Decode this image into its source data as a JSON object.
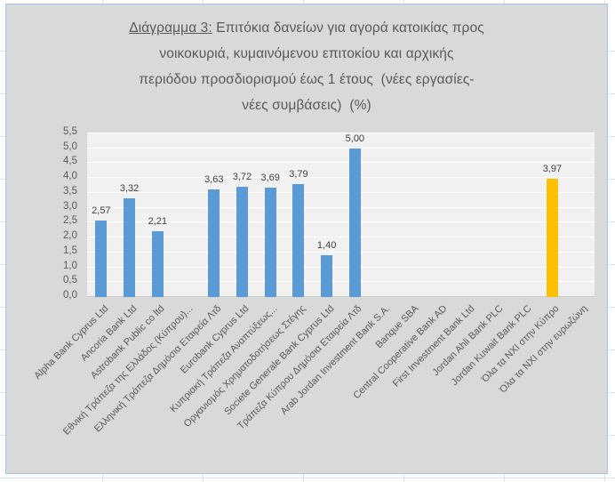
{
  "frame_colors": {
    "chart_background": "#d9d9d9",
    "plot_background": "#f1f1f1",
    "chart_border": "#a6c5e4",
    "gridline": "#ffffff",
    "text": "#595959",
    "value_label_text": "#3f3f3f"
  },
  "chart_data": {
    "type": "bar",
    "title": "Διάγραμμα 3: Επιτόκια δανείων για αγορά κατοικίας προς νοικοκυριά, κυμαινόμενου επιτοκίου και αρχικής περιόδου προσδιορισμού έως 1 έτους (νέες εργασίες-νέες συμβάσεις) (%)",
    "title_lines": [
      {
        "u": "Διάγραμμα 3:",
        "t": " Επιτόκια δανείων για αγορά κατοικίας προς"
      },
      {
        "t": "νοικοκυριά, κυμαινόμενου επιτοκίου και αρχικής"
      },
      {
        "t": "περιόδου προσδιορισμού έως 1 έτους  (νέες εργασίες-"
      },
      {
        "t": "νέες συμβάσεις)  (%)"
      }
    ],
    "categories": [
      "Alpha Bank Cyprus Ltd",
      "Ancoria Bank Ltd",
      "Astrobank Public co ltd",
      "Εθνική Τράπεζα της Ελλάδος (Κύπρου)...",
      "Ελληνική Τράπεζα Δημόσια Εταιρεία Λτδ",
      "Eurobank Cyprus Ltd",
      "Κυπριακή Τράπεζα Αναπτύξεως...",
      "Οργανισμός Χρηματοδοτήσεως Στέγης",
      "Societe Generale Bank Cyprus Ltd",
      "Τράπεζα Κύπρου Δημόσια Εταιρεία Λτδ",
      "Arab Jordan Investment Bank S.A.",
      "Banque SBA",
      "Central Cooperative Bank AD",
      "First Investment Bank Ltd",
      "Jordan Ahli Bank PLC",
      "Jordan Kuwait Bank PLC",
      "Όλα τα ΝΧΙ στην Κύπρο",
      "Όλα τα ΝΧΙ στην ευρωζώνη"
    ],
    "values": [
      2.57,
      3.32,
      2.21,
      null,
      3.63,
      3.72,
      3.69,
      3.79,
      1.4,
      5.0,
      null,
      null,
      null,
      null,
      null,
      null,
      3.97,
      null
    ],
    "value_labels": [
      "2,57",
      "3,32",
      "2,21",
      "",
      "3,63",
      "3,72",
      "3,69",
      "3,79",
      "1,40",
      "5,00",
      "",
      "",
      "",
      "",
      "",
      "",
      "3,97",
      ""
    ],
    "y_ticks": [
      "0,0",
      "0,5",
      "1,0",
      "1,5",
      "2,0",
      "2,5",
      "3,0",
      "3,5",
      "4,0",
      "4,5",
      "5,0",
      "5,5"
    ],
    "ylim": [
      0,
      5.5
    ],
    "bar_color": "#5b9bd5",
    "highlight": {
      "index": 16,
      "color": "#ffc000"
    },
    "grid": true,
    "legend": "none",
    "xlabel": "",
    "ylabel": ""
  }
}
